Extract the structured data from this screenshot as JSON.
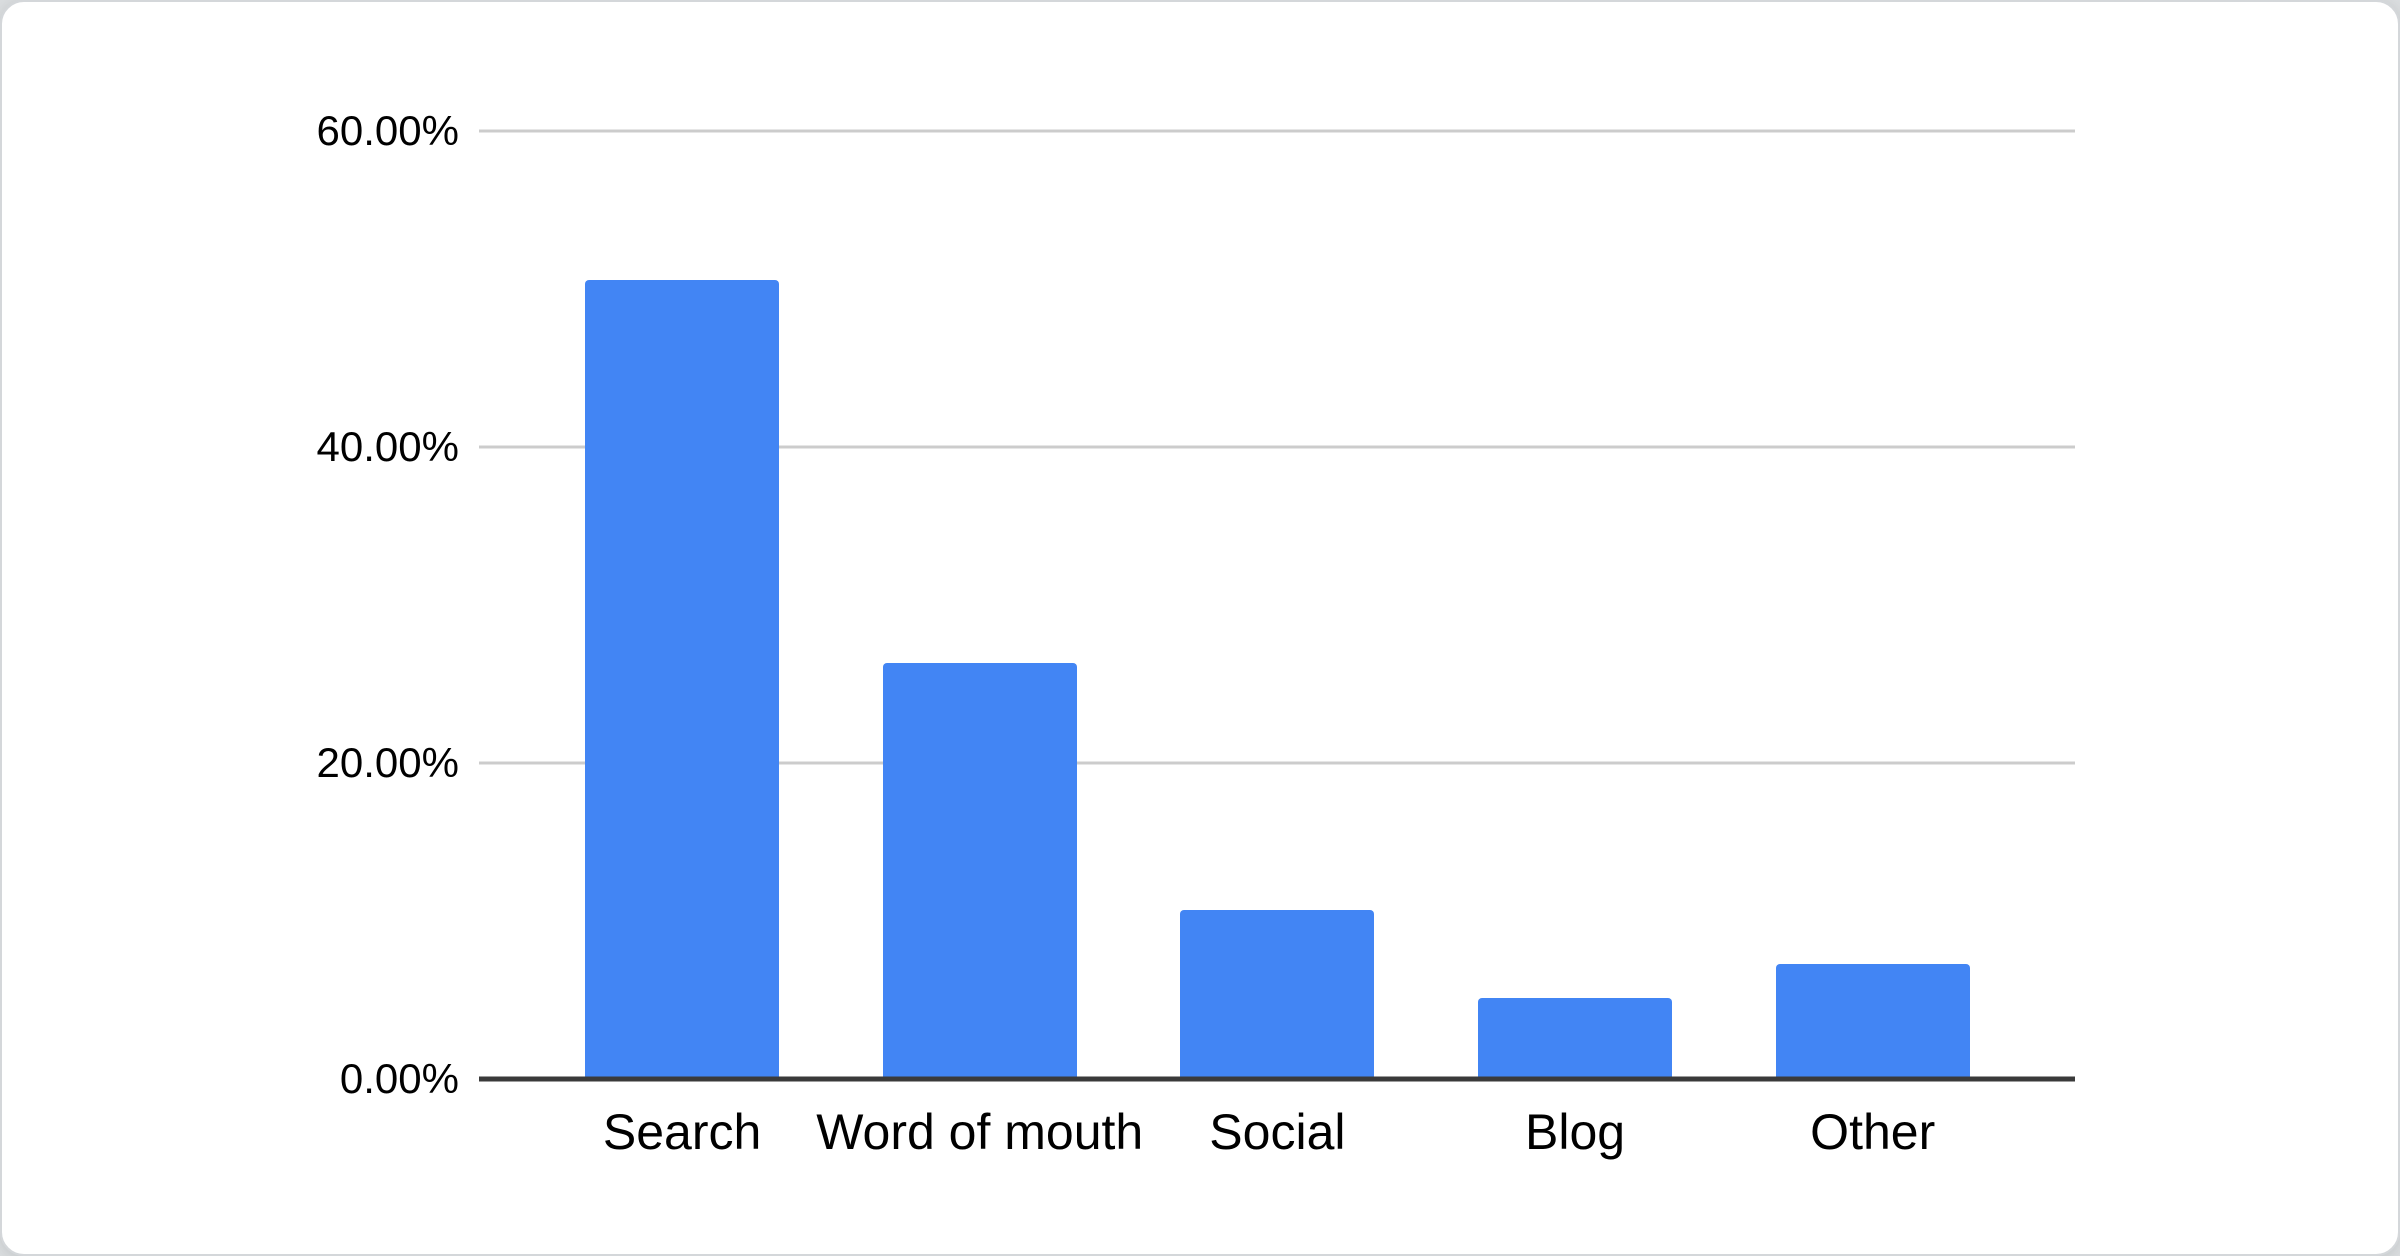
{
  "page": {
    "background_color": "#d9dcde",
    "card_background": "#ffffff",
    "card_border_color": "#d4d7da"
  },
  "chart_data": {
    "type": "bar",
    "categories": [
      "Search",
      "Word of mouth",
      "Social",
      "Blog",
      "Other"
    ],
    "values": [
      50.6,
      26.3,
      10.7,
      5.1,
      7.3
    ],
    "value_format": "percent",
    "ylim": [
      0,
      60
    ],
    "yticks": [
      {
        "value": 0,
        "label": "0.00%"
      },
      {
        "value": 20,
        "label": "20.00%"
      },
      {
        "value": 40,
        "label": "40.00%"
      },
      {
        "value": 60,
        "label": "60.00%"
      }
    ],
    "grid": true,
    "legend": "none",
    "bar_color": "#4285f4",
    "gridline_color": "#cccccc",
    "axis_line_color": "#3a3a3a",
    "label_color": "#000000"
  }
}
